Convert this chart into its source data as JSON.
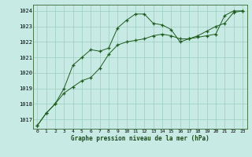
{
  "title": "Graphe pression niveau de la mer (hPa)",
  "background_color": "#c8eae4",
  "plot_bg_color": "#c8eae4",
  "grid_color": "#99ccbb",
  "line_color": "#1e5c1e",
  "marker_color": "#1e5c1e",
  "hours": [
    0,
    1,
    2,
    3,
    4,
    5,
    6,
    7,
    8,
    9,
    10,
    11,
    12,
    13,
    14,
    15,
    16,
    17,
    18,
    19,
    20,
    21,
    22,
    23
  ],
  "line1": [
    1016.6,
    1017.4,
    1018.0,
    1018.7,
    1019.1,
    1019.5,
    1019.7,
    1020.3,
    1021.2,
    1021.8,
    1022.0,
    1022.1,
    1022.2,
    1022.4,
    1022.5,
    1022.4,
    1022.2,
    1022.2,
    1022.4,
    1022.7,
    1023.0,
    1023.2,
    1023.9,
    1024.0
  ],
  "line2": [
    1016.6,
    1017.4,
    1018.0,
    1019.0,
    1020.5,
    1021.0,
    1021.5,
    1021.4,
    1021.6,
    1022.9,
    1023.4,
    1023.8,
    1023.8,
    1023.2,
    1023.1,
    1022.8,
    1022.0,
    1022.2,
    1022.3,
    1022.4,
    1022.5,
    1023.7,
    1024.0,
    1024.0
  ],
  "ylim": [
    1016.4,
    1024.4
  ],
  "yticks": [
    1017,
    1018,
    1019,
    1020,
    1021,
    1022,
    1023,
    1024
  ],
  "xlim": [
    -0.5,
    23.5
  ],
  "xticks": [
    0,
    1,
    2,
    3,
    4,
    5,
    6,
    7,
    8,
    9,
    10,
    11,
    12,
    13,
    14,
    15,
    16,
    17,
    18,
    19,
    20,
    21,
    22,
    23
  ]
}
